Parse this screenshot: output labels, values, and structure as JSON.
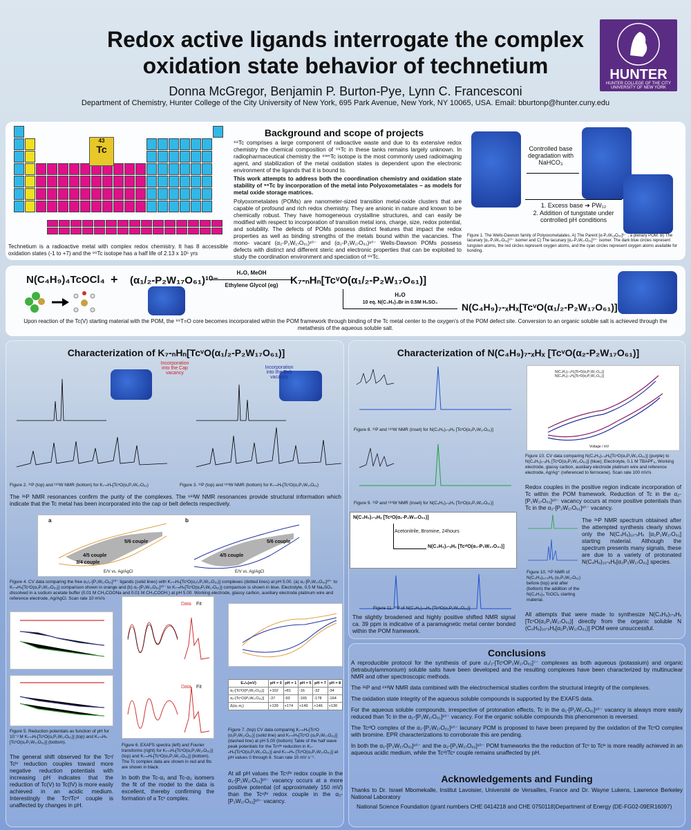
{
  "header": {
    "title_line1": "Redox active ligands interrogate the complex",
    "title_line2": "oxidation state behavior of technetium",
    "authors": "Donna McGregor, Benjamin P. Burton-Pye, Lynn C. Francesconi",
    "department": "Department of Chemistry, Hunter College of the City University of New York, 695 Park Avenue, New York, NY 10065, USA. Email: bburtonp@hunter.cuny.edu",
    "logo_name": "HUNTER",
    "logo_sub": "HUNTER COLLEGE OF THE CITY UNIVERSITY OF NEW YORK",
    "logo_ring": "MIHI · CURA · FUTURI"
  },
  "periodic": {
    "tc_symbol": "Tc",
    "tc_number": "43",
    "caption": "Technetium is a radioactive metal with complex redox chemistry. It has 8 accessible oxidation states (-1 to +7) and the ⁹⁹Tc isotope has a half life of 2.13 x 10⁵ yrs"
  },
  "background": {
    "heading": "Background and scope of projects",
    "p1": "⁹⁹Tc comprises a large component of radioactive waste and due to its extensive redox chemistry the chemical composition of ⁹⁹Tc in these tanks remains largely unknown. In radiopharmaceutical chemistry the ⁹⁹ᵐTc isotope is the most commonly used radioimaging agent, and stabilization of the metal oxidation states is dependent upon the electronic environment of the ligands that it is bound to.",
    "p2": "This work attempts to address both the coordination chemistry and oxidation state stability of ⁹⁹Tc by incorporation of the metal into Polyoxometalates – as models for metal oxide storage matrices.",
    "p3": "Polyoxometalates (POMs) are nanometer-sized transition metal-oxide clusters that are capable of profound and rich redox chemistry. They are anionic in nature and known to be chemically robust. They have homogeneous crystalline structures, and can easily be modified with respect to incorporation of transition metal ions, charge, size, redox potential, and solubility. The defects of POMs possess distinct features that impact the redox properties as well as binding strengths of the metals bound within the vacancies. The mono- vacant (α₂-P₂W₁₇O₆₁)¹⁰⁻ and (α₁-P₂W₁₇O₆₁)¹⁰⁻ Wells-Dawson POMs possess defects with distinct and different steric and electronic properties that can be exploited to study the coordination environment and speciation of ⁹⁹Tc."
  },
  "figure1": {
    "arrow1": "Controlled base degradation with NaHCO₃",
    "arrow2a": "1. Excess base ➔ PW₁₂",
    "arrow2b": "2. Addition of tungstate under controlled pH conditions",
    "caption": "Figure 1.  The Wells-Dawson family of Polyoxometalates. A) The Parent [α-P₂W₁₈O₆₂]⁶⁻ , a plenary POM. B) The lacunary [α₁-P₂W₁₇O₆₁]¹⁰⁻ isomer and C) The lacunary [α₂-P₂W₁₇O₆₁]¹⁰⁻ isomer. The dark blue circles represent tungsten atoms, the red circles represent oxygen atoms, and the cyan circles represent oxygen atoms available for bonding."
  },
  "reaction": {
    "reactant1": "N(C₄H₉)₄TcOCl₄",
    "plus": "+",
    "reactant2": "(α₁/₂-P₂W₁₇O₆₁)¹⁰⁻",
    "cond_top": "H₂O, MeOH",
    "cond_bottom": "Ethylene Glycol  (eg)",
    "product1": "K₇-ₙHₙ[TcᵛO(α₁/₂-P₂W₁₇O₆₁)]",
    "cond2_top": "H₂O",
    "cond2_bottom": "10 eq. N(C₄H₉)₄Br in 0.5M H₂SO₄",
    "product2": "N(C₄H₉)₇-ₓHₓ[TcᵛO(α₁/₂-P₂W₁₇O₆₁)]",
    "caption": "Upon reaction of the Tc(V) starting material with the POM, the ⁹⁹T=O core becomes incorporated within the POM framework through binding of the Tc metal center to the oxygen's of the POM defect site. Conversion to an organic soluble salt is achieved through the metathesis of the aqueous soluble salt."
  },
  "left": {
    "heading": "Characterization of K₇-ₙHₙ[TcᵛO(α₁/₂-P₂W₁₇O₆₁)]",
    "label_cap": "Incorporation into the Cap vacancy",
    "label_belt": "Incorporation into the Belt vacancy",
    "fig2": "Figure 2. ³¹P (top) and ¹⁸³W NMR (bottom) for K₇-ₙHₙ[TcᵛO(α₁P₂W₁₇O₆₁)",
    "fig3": "Figure 3. ³¹P (top) and ¹⁸³W NMR (bottom) for K₇-ₙHₙ[TcᵛO(α₂P₂W₁₇O₆₁)",
    "nmr_text": "The ³¹P NMR resonances confirm the purity of the complexes. The ¹⁸³W NMR resonances provide structural information which indicate that the Tc metal has been incorporated into the cap or belt defects respectively.",
    "cv_a": "a",
    "cv_b": "b",
    "cv_56": "5/6 couple",
    "cv_45": "4/5 couple",
    "cv_34": "3/4 couple",
    "cv_xlabel": "E/V vs. Ag/AgCl",
    "cv_ylabel": "I/μA",
    "fig4": "Figure 4. CV data comparing the free α₁/₂-[P₂W₁₇O₆₁]¹⁰⁻ ligands (solid lines) with K₇-ₙHₙ[TcᵛO(α₁/₂P₂W₁₇O₆₁)] complexes (dotted lines) at pH 5.00. (a) α₁-[P₂W₁₇O₆₁]¹⁰⁻ to K₇-ₙHₙ[TcᵛO(α₁P₂W₁₇O₆₁)] comparison shown in orange and (b) α₂-[P₂W₁₇O₆₁]¹⁰⁻ to K₇-ₙHₙ[TcᵛO(α₂P₂W₁₇O₆₁)] comparison is shown in blue. Electrolyte, 0.5 M Na₂SO₄ dissolved in a sodium acetate buffer (0.01 M CH₃COONa and 0.01 M CH₃COOH.) at pH 5.00. Working electrode, glassy carbon, auxiliary electrode platinum wire and reference electrode, Ag/AgCl. Scan rate 10 mV/s",
    "fig5": "Figure 5. Reduction potentials as function of pH for 10⁻³ M K₇-ₙHₙ[TcᵛO(α₁P₂W₁₇O₆₁)] (top) and K₇-ₙHₙ [TcᵛO(α₂P₂W₁₇O₆₁)] (bottom).",
    "fig5_text": "The general shift observed for the Tcᵛ/ Tcᴵᵛ reduction couples toward more negative reduction potentials with increasing pH indicates that the reduction of Tc(V) to Tc(IV) is more easily achieved in an acidic medium. Interestingly the Tcᵛ/Tcᵛᴵ couple is unaffected by changes in pH.",
    "exafs_data": "Data",
    "exafs_fit": "Fit",
    "fig6": "Figure 6.  EXAFS spectra (left) and Fourier transforms (right) for K₇-ₙHₙ[TcᵛO(α₁P₂W₁₇O₆₁)] (top) and K₇-ₙHₙ[TcᵛO(α₂P₂W₁₇O₆₁)] (bottom). The Tc complex data are shown in red and fits are shown in black.",
    "fig6_text": "In both the Tc-α₁ and Tc-α₂ isomers the fit of the model to the data is excellent, thereby confirming the formation of a Tcᵛ complex.",
    "fig7": "Figure 7. (top) CV data comparing K₇-ₙHₙ[TcᵛO (α₁P₂W₁₇O₆₁)] (solid line) and K₇-ₙHₙ[TcᵛO (α₂P₂W₁₇O₆₁)] (dashed line) at pH 5.00 (bottom) Table of the half wave peak potentials for the Tcᵛ/ᴵᵛ reduction in K₇-ₙHₙ[TcᵛO(α₁P₂W₁₇O₆₁)] and K₇-ₙHₙ [TcᵛO(α₂P₂W₁₇O₆₁)] at pH values 0 through 8. Scan rate 10 mV s⁻¹.",
    "fig7_text": "At all pH values the Tcᵛ/ᴵᵛ redox couple in the α₁-[P₂W₁₇O₆₁]¹⁰⁻ vacancy occurs at a more positive potential (of approximately 150 mV) than the Tcᵛ/ᴵᵛ redox couple in the α₂-[P₂W₁₇O₆₁]¹⁰⁻ vacancy.",
    "table_headers": [
      "E₁/₂(mV)",
      "pH = 0",
      "pH = 1",
      "pH = 5",
      "pH = 7",
      "pH = 8"
    ],
    "table_rows": [
      [
        "α₁-[TcᵛO(P₂W₁₇O₆₁)]",
        "+102",
        "+81",
        "-16",
        "-32",
        "-34"
      ],
      [
        "α₂-[TcᵛO(P₂W₁₇O₆₁)]",
        "-37",
        "-93",
        "-165",
        "-178",
        "-164"
      ],
      [
        "Δ(α₁-α₂)",
        "+139",
        "+174",
        "+149",
        "+146",
        "+130"
      ]
    ]
  },
  "right": {
    "heading": "Characterization of N(C₄H₉)₇-ₓHₓ [TcᵛO(α₂-P₂W₁₇O₆₁)]",
    "fig8": "Figure 8. ³¹P and ¹⁸³W NMR (inset) for N(C₄H₉)₇-ₓHₓ [TcᵛO(α₂P₂W₁₇O₆₁)]",
    "fig9": "Figure 9. ³¹P and ¹⁸³W NMR (inset) for N(C₄H₉)₇-ₓHₓ [TcᵛO(α₂P₂W₁₇O₆₁)]",
    "fig10cv": "Figure 10. CV data comparing N(C₄H₉)₇-ₓHₓ[TcᵛO(α₂P₂W₁₇O₆₁)] (purple) to N(C₄H₉)₇-ₓHₓ [TcᵛO(α₂P₂W₁₇O₆₁)] (blue); Electrolyte, 0.1 M TBAPF₆, Working electrode, glassy carbon, auxiliary electrode platinum wire and reference electrode, Ag/Ag⁺ (referenced to ferrocene). Scan rate 100 mV/s",
    "cv_legend1": "N(C₄H₉)₇-ₓHₓ[TcᵛO(α₂P₂W₁₇O₆₁)]",
    "cv_legend2": "N(C₄H₉)₇-ₓHₓ[TcᵛO(α₂P₂W₁₇O₆₁)]",
    "cv_xlabel": "Voltage / mV",
    "cv_ylabel": "Current / μA",
    "redox_text": "Redox couples in the positive region indicate incorporation of Tc within the POM framework. Reduction of Tc in the α₂-[P₂W₁₇O₆₁]¹⁰⁻ vacancy occurs at more positive potentials than Tc in the α₂-[P₂W₁₇O₆₁]¹⁰⁻ vacancy.",
    "rxn_reactant": "N(C₄H₉)₇-ₓHₓ [TcᵛO(α₁-P₂W₁₇O₆₁)]",
    "rxn_cond": "Acetonitrile, Bromine, 24hours",
    "rxn_product": "N(C₄H₉)₇-ₓHₓ [TcᵛᴵO(α₁-P₂W₁₇O₆₁)]",
    "fig11": "Figure 11. ³¹P of N(C₄H₉)₇-ₓHₓ [TcᵛᴵO(α₁P₂W₁₇O₆₁)]",
    "fig11_text": "The slightly broadened and highly positive shifted NMR signal ca. 39 ppm is indicative of a paramagnetic metal center bonded within the POM framework.",
    "nmr31_text": "The ³¹P NMR spectrum obtained after the attempted synthesis clearly shows only the N(C₄H₉)₁₀-ₓHₓ [α₂P₂W₁₇O₆₁] starting material. Although the spectrum presents many signals, these are due to a variety of protonated N(C₄H₉)₁₀-ₓHₓ[α₂P₂W₁₇O₆₁] species.",
    "fig10nmr": "Figure 10. ³¹P NMR of N(C₄H₉)₁₀-ₓHₓ (α₂P₂W₁₇O₆₁) before (top) and after (bottom) the addition of the N(C₄H₉)₄ TcOCl₄ starting material.",
    "attempt_text": "All attempts that were made to synthesize N(C₄H₉)₇-ₓHₓ [TcᵛO(α₂P₂W₁₇O₆₁)] directly from the organic soluble N (C₄H₉)₁₀-ₓHₓ[α₂P₂W₁₇O₆₁)] POM were unsuccessful."
  },
  "conclusions": {
    "heading": "Conclusions",
    "items": [
      "A reproducible protocol for the synthesis of pure α₁/₂-[TcᵛOP₂W₁₇O₆₁]⁷⁻ complexes as both aqueous (potassium) and organic (tetrabutylammonium) soluble salts have been developed and the resulting complexes have been characterized by multinuclear NMR and other spectroscopic methods.",
      "The ³¹P and ¹⁸³W NMR data combined with the electrochemical studies confirm the structural integrity of the complexes.",
      "The oxidation state integrity of the aqueous soluble compounds is supported by the EXAFS data.",
      "For the aqueous soluble compounds, irrespective of protonation effects, Tc in the α₁-[P₂W₁₇O₆₁]¹⁰⁻ vacancy is always more easily reduced than Tc in the α₂-[P₂W₁₇O₆₁]¹⁰⁻ vacancy. For the organic soluble compounds this phenomenon is reversed.",
      "The TcᵛᴵO complex of the α₁-[P₂W₁₇O₆₁]¹⁰⁻ lacunary POM is proposed to have been prepared by the oxidation of the TcᵛO complex with bromine. EPR characterizations to corroborate this are pending.",
      "In both the α₁-[P₂W₁₇O₆₁]¹⁰⁻ and the α₂-[P₂W₁₇O₆₁]¹⁰⁻ POM frameworks the the reduction of Tcᵛ to Tcᴵᵛ is more readily achieved in an aqueous acidic medium, while the Tcᵛᴵ/Tcᵛ couple remains unaffected by pH."
    ]
  },
  "acknowledgements": {
    "heading": "Acknowledgements and Funding",
    "text1": "Thanks to Dr. Israel Mbomekalle, Institut Lavoisier, Université de Versailles, France and Dr. Wayne Lukens, Lawrence Berkeley National Laboratory",
    "text2": "National Science Foundation (grant numbers CHE 0414218 and CHE 0750118)Department of Energy (DE-FG02-09ER16097)"
  },
  "colors": {
    "cv_orange": "#e0a040",
    "cv_blue": "#2030a0",
    "cv_purple": "#8a2060",
    "nmr_green": "#20a040",
    "nmr_blue": "#2050d0",
    "exafs_red": "#d03030",
    "pt_pink": "#e0108a",
    "pt_cyan": "#30b8e8",
    "pt_yellow": "#f0e020",
    "pt_green": "#40b040"
  }
}
